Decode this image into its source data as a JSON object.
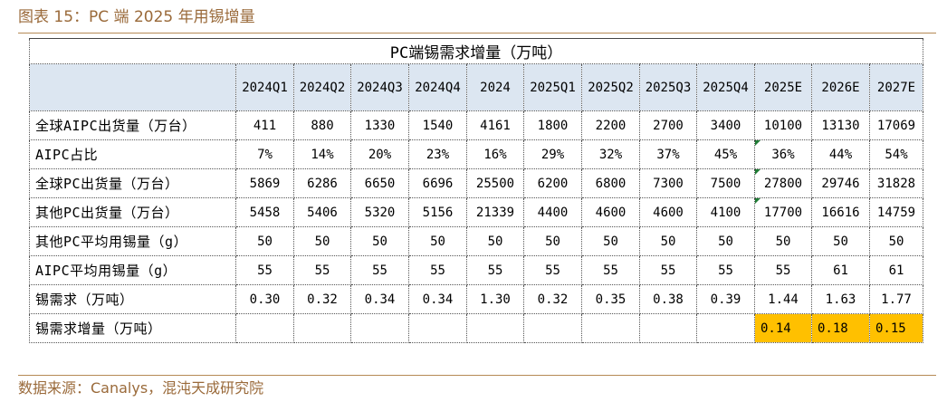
{
  "figure_title": "图表 15：PC 端 2025 年用锡增量",
  "source_note": "数据来源：Canalys，混沌天成研究院",
  "table": {
    "title": "PC端锡需求增量（万吨）",
    "columns": [
      "2024Q1",
      "2024Q2",
      "2024Q3",
      "2024Q4",
      "2024",
      "2025Q1",
      "2025Q2",
      "2025Q3",
      "2025Q4",
      "2025E",
      "2026E",
      "2027E"
    ],
    "rows": [
      {
        "label": "全球AIPC出货量（万台）",
        "values": [
          "411",
          "880",
          "1330",
          "1540",
          "4161",
          "1800",
          "2200",
          "2700",
          "3400",
          "10100",
          "13130",
          "17069"
        ]
      },
      {
        "label": "AIPC占比",
        "values": [
          "7%",
          "14%",
          "20%",
          "23%",
          "16%",
          "29%",
          "32%",
          "37%",
          "45%",
          "36%",
          "44%",
          "54%"
        ]
      },
      {
        "label": "全球PC出货量（万台）",
        "values": [
          "5869",
          "6286",
          "6650",
          "6696",
          "25500",
          "6200",
          "6800",
          "7300",
          "7500",
          "27800",
          "29746",
          "31828"
        ]
      },
      {
        "label": "其他PC出货量（万台）",
        "values": [
          "5458",
          "5406",
          "5320",
          "5156",
          "21339",
          "4400",
          "4600",
          "4600",
          "4100",
          "17700",
          "16616",
          "14759"
        ]
      },
      {
        "label": "其他PC平均用锡量（g）",
        "values": [
          "50",
          "50",
          "50",
          "50",
          "50",
          "50",
          "50",
          "50",
          "50",
          "50",
          "50",
          "50"
        ]
      },
      {
        "label": "AIPC平均用锡量（g）",
        "values": [
          "55",
          "55",
          "55",
          "55",
          "55",
          "55",
          "55",
          "55",
          "55",
          "55",
          "61",
          "61"
        ]
      },
      {
        "label": "锡需求（万吨）",
        "values": [
          "0.30",
          "0.32",
          "0.34",
          "0.34",
          "1.30",
          "0.32",
          "0.35",
          "0.38",
          "0.39",
          "1.44",
          "1.63",
          "1.77"
        ]
      },
      {
        "label": "锡需求增量（万吨）",
        "values": [
          "",
          "",
          "",
          "",
          "",
          "",
          "",
          "",
          "",
          "0.14",
          "0.18",
          "0.15"
        ]
      }
    ],
    "colors": {
      "header_fill": "#dce6f1",
      "highlight_fill": "#ffc000",
      "caption_text": "#9a6a3a",
      "rule": "#b58a55",
      "note_flag": "#1e7b34"
    }
  }
}
